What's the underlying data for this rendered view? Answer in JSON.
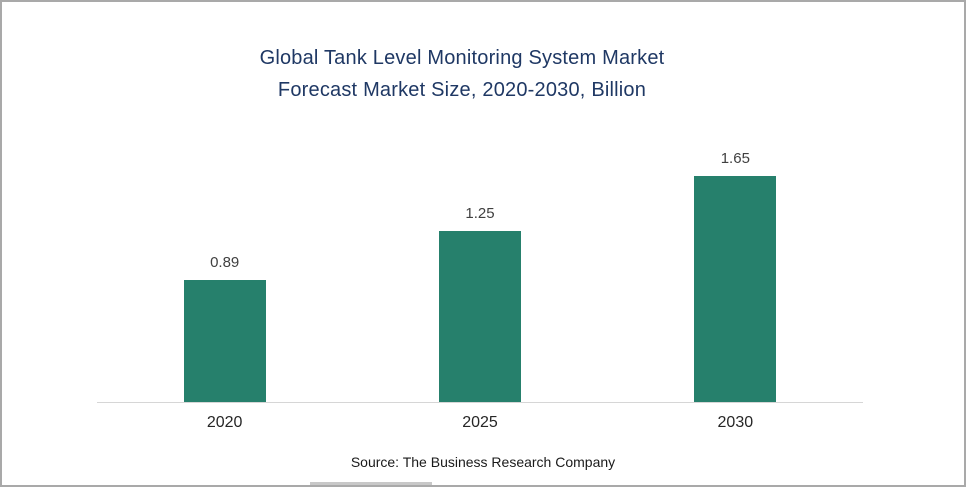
{
  "chart_data": {
    "type": "bar",
    "title": "Global Tank Level Monitoring System Market Forecast Market Size, 2020-2030, Billion",
    "title_lines": [
      "Global Tank Level Monitoring System Market",
      "Forecast Market Size, 2020-2030, Billion"
    ],
    "categories": [
      "2020",
      "2025",
      "2030"
    ],
    "values": [
      0.89,
      1.25,
      1.65
    ],
    "xlabel": "",
    "ylabel": "",
    "ylim": [
      0,
      1.9
    ],
    "grid": false,
    "legend_position": "none",
    "bar_color": "#26806C",
    "title_color": "#1F3864",
    "value_label_color": "#404040",
    "source": "Source: The Business Research Company"
  }
}
